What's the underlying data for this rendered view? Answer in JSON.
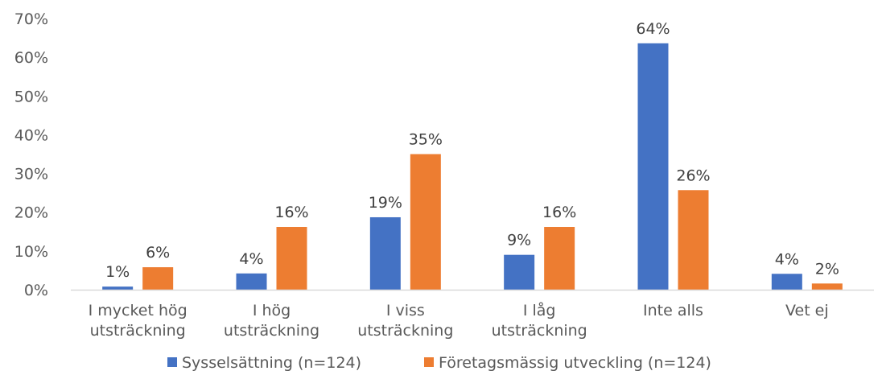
{
  "chart_data": {
    "type": "bar",
    "categories": [
      [
        "I mycket hög",
        "utsträckning"
      ],
      [
        "I hög",
        "utsträckning"
      ],
      [
        "I viss",
        "utsträckning"
      ],
      [
        "I låg",
        "utsträckning"
      ],
      [
        "Inte alls"
      ],
      [
        "Vet ej"
      ]
    ],
    "series": [
      {
        "name": "Sysselsättning (n=124)",
        "color": "#4472C4",
        "values": [
          0.8,
          4.2,
          18.7,
          9.0,
          63.6,
          4.1
        ],
        "labels": [
          "1%",
          "4%",
          "19%",
          "9%",
          "64%",
          "4%"
        ]
      },
      {
        "name": "Företagsmässig utveckling (n=124)",
        "color": "#ED7D31",
        "values": [
          5.8,
          16.2,
          35.0,
          16.2,
          25.7,
          1.6
        ],
        "labels": [
          "6%",
          "16%",
          "35%",
          "16%",
          "26%",
          "2%"
        ]
      }
    ],
    "yticks": [
      "0%",
      "10%",
      "20%",
      "30%",
      "40%",
      "50%",
      "60%",
      "70%"
    ],
    "ylim": [
      0,
      70
    ],
    "grid": false,
    "legend_position": "bottom"
  }
}
